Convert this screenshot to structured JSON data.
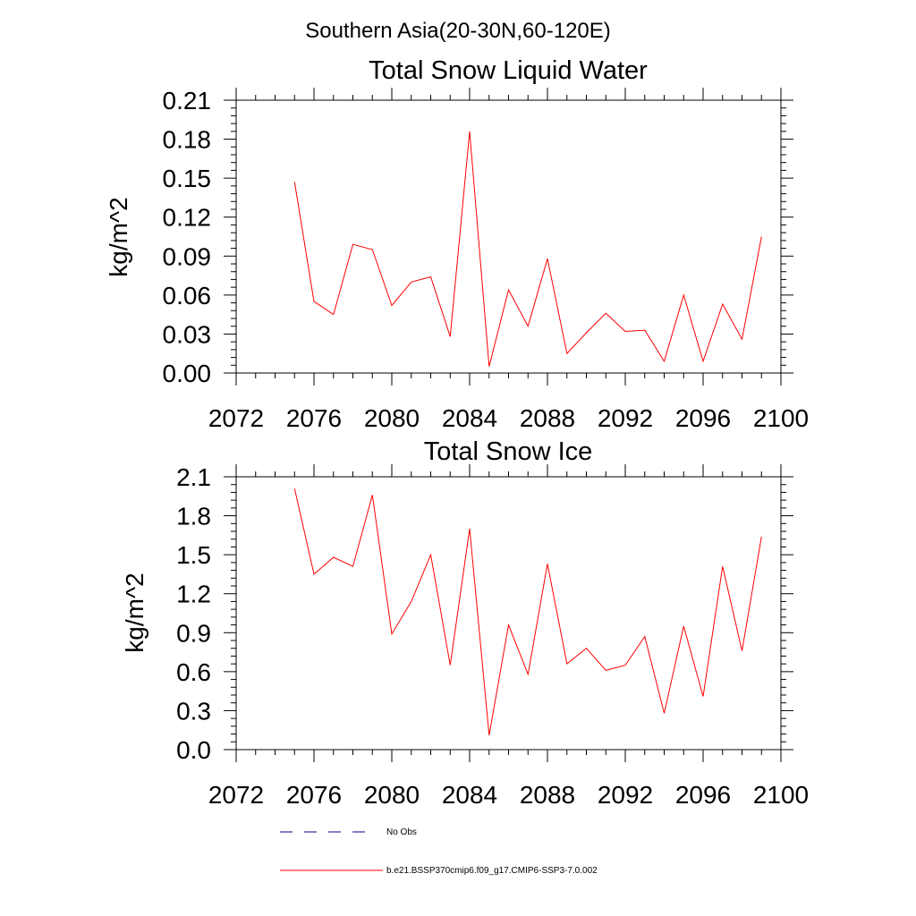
{
  "figure_title": "Southern Asia(20-30N,60-120E)",
  "colors": {
    "model_line": "#ff0000",
    "obs_line": "#00008b",
    "axes": "#000000"
  },
  "legend": {
    "entries": [
      {
        "label": "No Obs",
        "style": "dashed",
        "color": "#00008b"
      },
      {
        "label": "b.e21.BSSP370cmip6.f09_g17.CMIP6-SSP3-7.0.002",
        "style": "solid",
        "color": "#ff0000"
      }
    ]
  },
  "chart_data": [
    {
      "type": "line",
      "title": "Total Snow Liquid Water",
      "xlabel": "",
      "ylabel": "kg/m^2",
      "xlim": [
        2072,
        2100
      ],
      "ylim": [
        0,
        0.21
      ],
      "x_ticks": [
        "2072",
        "2076",
        "2080",
        "2084",
        "2088",
        "2092",
        "2096",
        "2100"
      ],
      "y_ticks": [
        "0.00",
        "0.03",
        "0.06",
        "0.09",
        "0.12",
        "0.15",
        "0.18",
        "0.21"
      ],
      "grid": false,
      "series": [
        {
          "name": "b.e21.BSSP370cmip6.f09_g17.CMIP6-SSP3-7.0.002",
          "x": [
            2075,
            2076,
            2077,
            2078,
            2079,
            2080,
            2081,
            2082,
            2083,
            2084,
            2085,
            2086,
            2087,
            2088,
            2089,
            2090,
            2091,
            2092,
            2093,
            2094,
            2095,
            2096,
            2097,
            2098,
            2099
          ],
          "values": [
            0.147,
            0.055,
            0.045,
            0.099,
            0.095,
            0.052,
            0.07,
            0.074,
            0.028,
            0.186,
            0.005,
            0.064,
            0.036,
            0.088,
            0.015,
            0.031,
            0.046,
            0.032,
            0.033,
            0.009,
            0.06,
            0.009,
            0.053,
            0.026,
            0.105
          ]
        }
      ]
    },
    {
      "type": "line",
      "title": "Total Snow Ice",
      "xlabel": "",
      "ylabel": "kg/m^2",
      "xlim": [
        2072,
        2100
      ],
      "ylim": [
        0,
        2.1
      ],
      "x_ticks": [
        "2072",
        "2076",
        "2080",
        "2084",
        "2088",
        "2092",
        "2096",
        "2100"
      ],
      "y_ticks": [
        "0.0",
        "0.3",
        "0.6",
        "0.9",
        "1.2",
        "1.5",
        "1.8",
        "2.1"
      ],
      "grid": false,
      "series": [
        {
          "name": "b.e21.BSSP370cmip6.f09_g17.CMIP6-SSP3-7.0.002",
          "x": [
            2075,
            2076,
            2077,
            2078,
            2079,
            2080,
            2081,
            2082,
            2083,
            2084,
            2085,
            2086,
            2087,
            2088,
            2089,
            2090,
            2091,
            2092,
            2093,
            2094,
            2095,
            2096,
            2097,
            2098,
            2099
          ],
          "values": [
            2.01,
            1.35,
            1.48,
            1.41,
            1.96,
            0.89,
            1.14,
            1.5,
            0.65,
            1.7,
            0.11,
            0.96,
            0.58,
            1.43,
            0.66,
            0.78,
            0.61,
            0.65,
            0.87,
            0.28,
            0.95,
            0.41,
            1.41,
            0.76,
            1.64
          ]
        }
      ]
    }
  ]
}
